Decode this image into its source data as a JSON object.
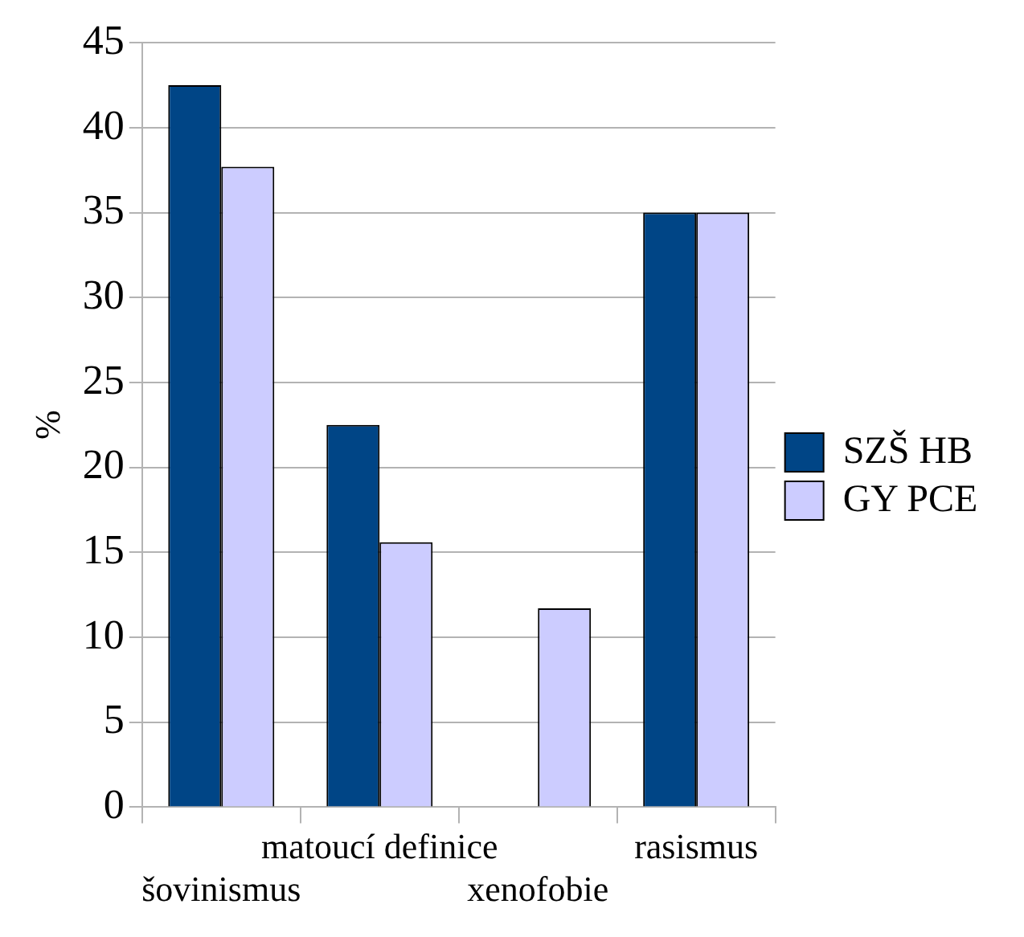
{
  "chart_data": {
    "type": "bar",
    "ylabel": "%",
    "categories": [
      "šovinismus",
      "matoucí definice",
      "xenofobie",
      "rasismus"
    ],
    "series": [
      {
        "name": "SZŠ HB",
        "color": "#004586",
        "values": [
          42.5,
          22.5,
          0,
          35
        ]
      },
      {
        "name": "GY PCE",
        "color": "#ccccff",
        "values": [
          37.7,
          15.6,
          11.7,
          35
        ]
      }
    ],
    "ylim": [
      0,
      45
    ],
    "yticks": [
      0,
      5,
      10,
      15,
      20,
      25,
      30,
      35,
      40,
      45
    ],
    "grid": "y",
    "legend": "right"
  }
}
